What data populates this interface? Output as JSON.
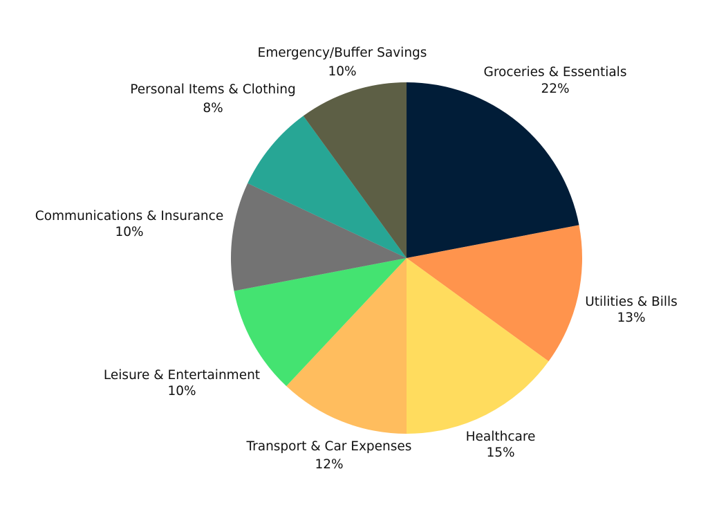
{
  "chart_data": {
    "type": "pie",
    "title": "",
    "start_angle_deg": 0,
    "direction": "clockwise",
    "slices": [
      {
        "label": "Groceries & Essentials",
        "value": 22,
        "value_label": "22%",
        "color": "#011D38"
      },
      {
        "label": "Utilities & Bills",
        "value": 13,
        "value_label": "13%",
        "color": "#FF944D"
      },
      {
        "label": "Healthcare",
        "value": 15,
        "value_label": "15%",
        "color": "#FFDC5E"
      },
      {
        "label": "Transport & Car Expenses",
        "value": 12,
        "value_label": "12%",
        "color": "#FFBD5E"
      },
      {
        "label": "Leisure & Entertainment",
        "value": 10,
        "value_label": "10%",
        "color": "#44E371"
      },
      {
        "label": "Communications & Insurance",
        "value": 10,
        "value_label": "10%",
        "color": "#737373"
      },
      {
        "label": "Personal Items & Clothing",
        "value": 8,
        "value_label": "8%",
        "color": "#27A695"
      },
      {
        "label": "Emergency/Buffer Savings",
        "value": 10,
        "value_label": "10%",
        "color": "#5D5F45"
      }
    ]
  }
}
